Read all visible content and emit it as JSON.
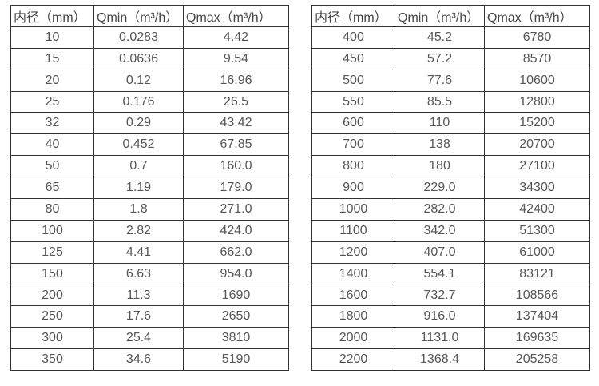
{
  "colors": {
    "background": "#ffffff",
    "border": "#333333",
    "text": "#4d4d4d"
  },
  "tables": [
    {
      "headers": [
        "内径（mm）",
        "Qmin（m³/h）",
        "Qmax（m³/h）"
      ],
      "rows": [
        [
          "10",
          "0.0283",
          "4.42"
        ],
        [
          "15",
          "0.0636",
          "9.54"
        ],
        [
          "20",
          "0.12",
          "16.96"
        ],
        [
          "25",
          "0.176",
          "26.5"
        ],
        [
          "32",
          "0.29",
          "43.42"
        ],
        [
          "40",
          "0.452",
          "67.85"
        ],
        [
          "50",
          "0.7",
          "160.0"
        ],
        [
          "65",
          "1.19",
          "179.0"
        ],
        [
          "80",
          "1.8",
          "271.0"
        ],
        [
          "100",
          "2.82",
          "424.0"
        ],
        [
          "125",
          "4.41",
          "662.0"
        ],
        [
          "150",
          "6.63",
          "954.0"
        ],
        [
          "200",
          "11.3",
          "1690"
        ],
        [
          "250",
          "17.6",
          "2650"
        ],
        [
          "300",
          "25.4",
          "3810"
        ],
        [
          "350",
          "34.6",
          "5190"
        ]
      ]
    },
    {
      "headers": [
        "内径（mm）",
        "Qmin（m³/h）",
        "Qmax（m³/h）"
      ],
      "rows": [
        [
          "400",
          "45.2",
          "6780"
        ],
        [
          "450",
          "57.2",
          "8570"
        ],
        [
          "500",
          "77.6",
          "10600"
        ],
        [
          "550",
          "85.5",
          "12800"
        ],
        [
          "600",
          "110",
          "15200"
        ],
        [
          "700",
          "138",
          "20700"
        ],
        [
          "800",
          "180",
          "27100"
        ],
        [
          "900",
          "229.0",
          "34300"
        ],
        [
          "1000",
          "282.0",
          "42400"
        ],
        [
          "1100",
          "342.0",
          "51300"
        ],
        [
          "1200",
          "407.0",
          "61000"
        ],
        [
          "1400",
          "554.1",
          "83121"
        ],
        [
          "1600",
          "732.7",
          "108566"
        ],
        [
          "1800",
          "916.0",
          "137404"
        ],
        [
          "2000",
          "1131.0",
          "169635"
        ],
        [
          "2200",
          "1368.4",
          "205258"
        ]
      ]
    }
  ]
}
